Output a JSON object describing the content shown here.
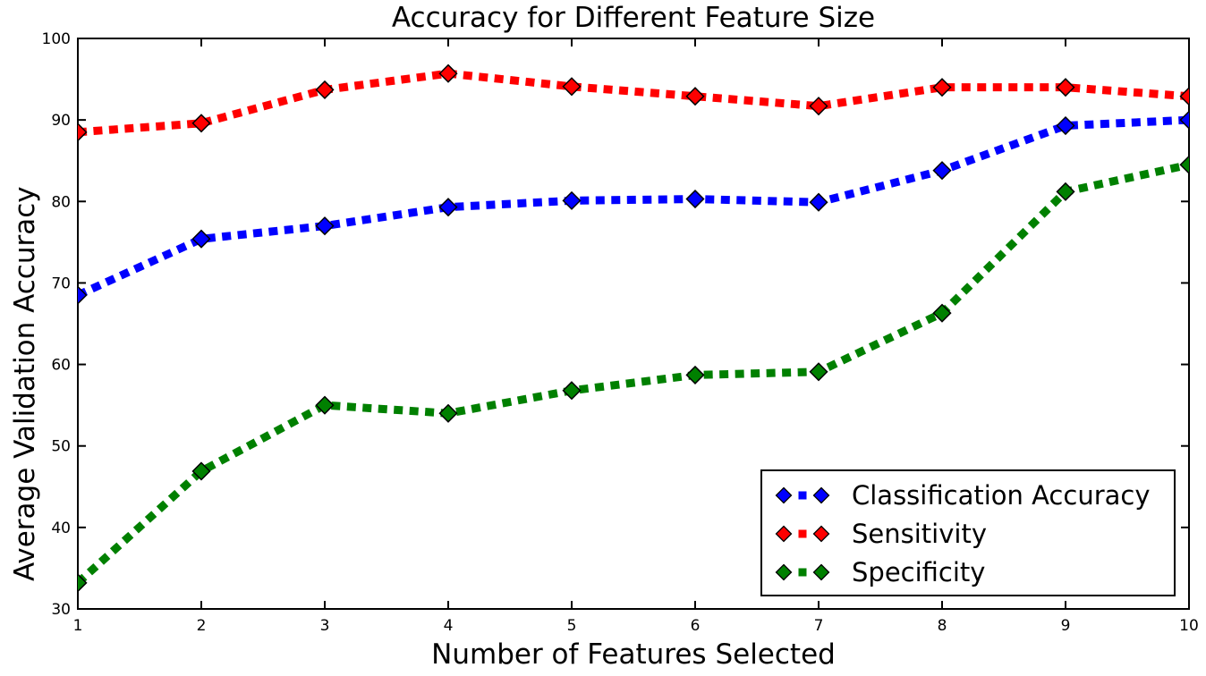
{
  "chart_data": {
    "type": "line",
    "title": "Accuracy for Different Feature Size",
    "xlabel": "Number of Features Selected",
    "ylabel": "Average Validation Accuracy",
    "x": [
      1,
      2,
      3,
      4,
      5,
      6,
      7,
      8,
      9,
      10
    ],
    "xlim": [
      1,
      10
    ],
    "ylim": [
      30,
      100
    ],
    "xticks": [
      1,
      2,
      3,
      4,
      5,
      6,
      7,
      8,
      9,
      10
    ],
    "yticks": [
      30,
      40,
      50,
      60,
      70,
      80,
      90,
      100
    ],
    "grid": false,
    "line_style": "dashed",
    "marker": "diamond",
    "legend_position": "lower right",
    "axis_color": "#000000",
    "background_color": "#ffffff",
    "series": [
      {
        "name": "Classification Accuracy",
        "color": "#0000ff",
        "values": [
          68.5,
          75.4,
          77.0,
          79.3,
          80.1,
          80.3,
          79.9,
          83.8,
          89.3,
          90.0
        ]
      },
      {
        "name": "Sensitivity",
        "color": "#ff0000",
        "values": [
          88.5,
          89.6,
          93.7,
          95.7,
          94.1,
          92.9,
          91.7,
          94.0,
          94.0,
          92.9
        ]
      },
      {
        "name": "Specificity",
        "color": "#008000",
        "values": [
          33.2,
          46.9,
          55.0,
          54.0,
          56.8,
          58.7,
          59.1,
          66.3,
          81.2,
          84.5
        ]
      }
    ]
  }
}
